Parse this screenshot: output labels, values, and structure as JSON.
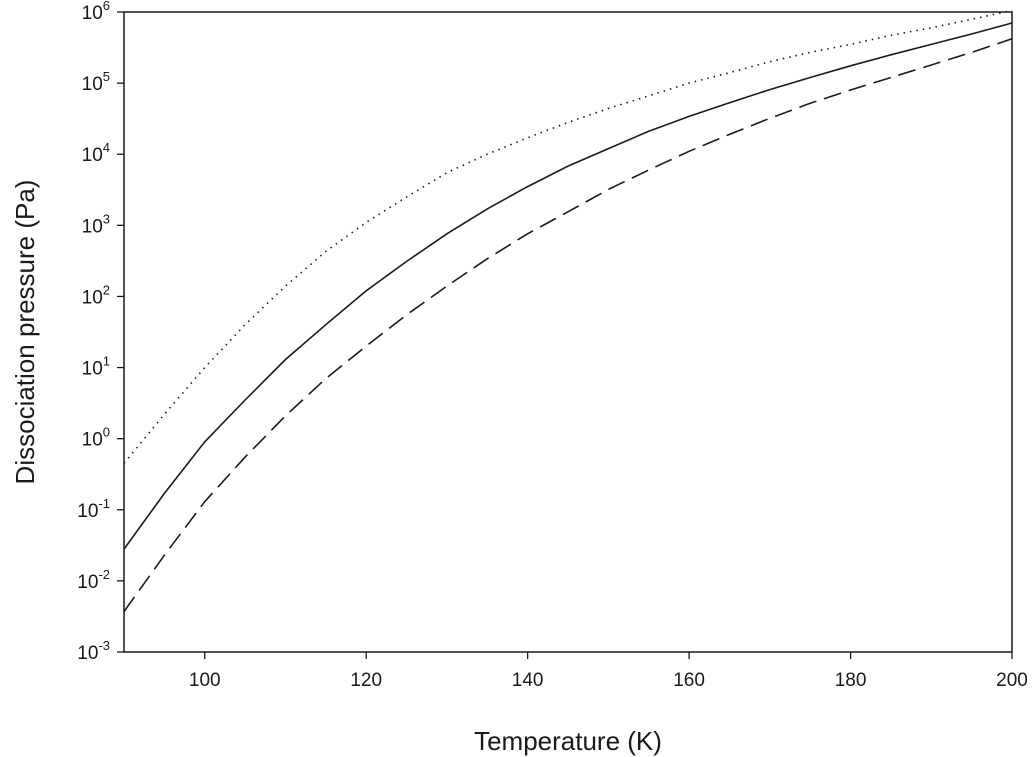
{
  "chart_data": {
    "type": "line",
    "title": "",
    "xlabel": "Temperature (K)",
    "ylabel": "Dissociation pressure (Pa)",
    "xlim": [
      90,
      200
    ],
    "ylim": [
      0.001,
      1000000
    ],
    "yscale": "log",
    "grid": false,
    "x_ticks": [
      100,
      120,
      140,
      160,
      180,
      200
    ],
    "x_tick_labels": [
      "100",
      "120",
      "140",
      "160",
      "180",
      "200"
    ],
    "y_ticks": [
      0.001,
      0.01,
      0.1,
      1,
      10,
      100,
      1000,
      10000,
      100000,
      1000000
    ],
    "y_tick_labels": [
      {
        "base": "10",
        "exp": "-3"
      },
      {
        "base": "10",
        "exp": "-2"
      },
      {
        "base": "10",
        "exp": "-1"
      },
      {
        "base": "10",
        "exp": "0"
      },
      {
        "base": "10",
        "exp": "1"
      },
      {
        "base": "10",
        "exp": "2"
      },
      {
        "base": "10",
        "exp": "3"
      },
      {
        "base": "10",
        "exp": "4"
      },
      {
        "base": "10",
        "exp": "5"
      },
      {
        "base": "10",
        "exp": "6"
      }
    ],
    "series": [
      {
        "style": "dotted",
        "color": "#1a1a1a",
        "x": [
          90,
          95,
          100,
          105,
          110,
          115,
          120,
          125,
          130,
          135,
          140,
          145,
          150,
          155,
          160,
          165,
          170,
          175,
          180,
          185,
          190,
          195,
          200
        ],
        "y": [
          0.45,
          2.2,
          10,
          40,
          140,
          430,
          1100,
          2500,
          5500,
          10000,
          17000,
          28000,
          44000,
          66000,
          100000,
          140000,
          200000,
          270000,
          350000,
          470000,
          600000,
          790000,
          1050000
        ]
      },
      {
        "style": "solid",
        "color": "#1a1a1a",
        "x": [
          90,
          95,
          100,
          105,
          110,
          115,
          120,
          125,
          130,
          135,
          140,
          145,
          150,
          155,
          160,
          165,
          170,
          175,
          180,
          185,
          190,
          195,
          200
        ],
        "y": [
          0.028,
          0.17,
          0.9,
          3.5,
          13,
          40,
          120,
          310,
          760,
          1700,
          3500,
          6800,
          12000,
          21000,
          34000,
          53000,
          81000,
          120000,
          175000,
          250000,
          350000,
          490000,
          700000
        ]
      },
      {
        "style": "dashed",
        "color": "#1a1a1a",
        "x": [
          90,
          95,
          100,
          105,
          110,
          115,
          120,
          125,
          130,
          135,
          140,
          145,
          150,
          155,
          160,
          165,
          170,
          175,
          180,
          185,
          190,
          195,
          200
        ],
        "y": [
          0.0037,
          0.023,
          0.13,
          0.55,
          2.1,
          7,
          20,
          55,
          140,
          340,
          760,
          1550,
          3200,
          6000,
          11000,
          19000,
          32000,
          52000,
          80000,
          120000,
          180000,
          270000,
          420000
        ]
      }
    ]
  }
}
